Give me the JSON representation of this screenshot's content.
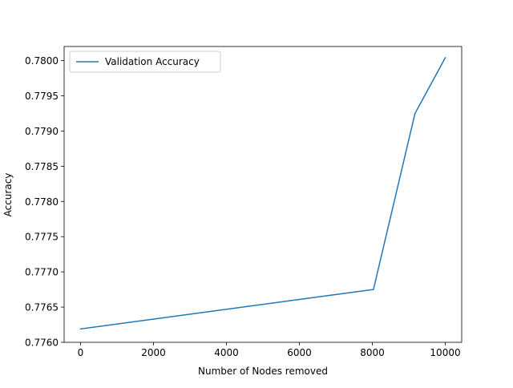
{
  "chart_data": {
    "type": "line",
    "title": "",
    "xlabel": "Number of Nodes removed",
    "ylabel": "Accuracy",
    "xlim": [
      -450,
      10450
    ],
    "ylim": [
      0.776,
      0.7802
    ],
    "xticks": [
      0,
      2000,
      4000,
      6000,
      8000,
      10000
    ],
    "xtick_labels": [
      "0",
      "2000",
      "4000",
      "6000",
      "8000",
      "10000"
    ],
    "yticks": [
      0.776,
      0.7765,
      0.777,
      0.7775,
      0.778,
      0.7785,
      0.779,
      0.7795,
      0.78
    ],
    "ytick_labels": [
      "0.7760",
      "0.7765",
      "0.7770",
      "0.7775",
      "0.7780",
      "0.7785",
      "0.7790",
      "0.7795",
      "0.7800"
    ],
    "grid": false,
    "legend_position": "top-left",
    "series": [
      {
        "name": "Validation Accuracy",
        "color": "#1f77b4",
        "x": [
          0,
          8030,
          9170,
          10000
        ],
        "y": [
          0.77619,
          0.77675,
          0.77925,
          0.78004
        ]
      }
    ]
  }
}
